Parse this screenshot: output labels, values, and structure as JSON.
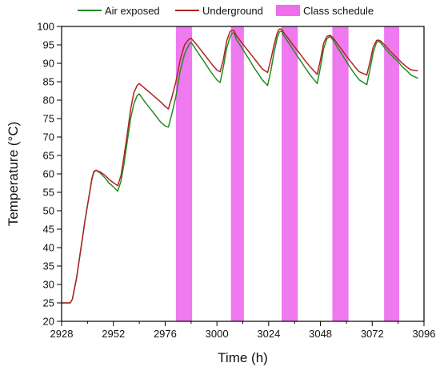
{
  "chart_data": {
    "type": "line",
    "xlabel": "Time (h)",
    "ylabel": "Temperature (°C)",
    "xlim": [
      2928,
      3096
    ],
    "ylim": [
      20,
      100
    ],
    "x_ticks": [
      2928,
      2952,
      2976,
      3000,
      3024,
      3048,
      3072,
      3096
    ],
    "y_ticks": [
      20,
      25,
      30,
      35,
      40,
      45,
      50,
      55,
      60,
      65,
      70,
      75,
      80,
      85,
      90,
      95,
      100
    ],
    "grid": false,
    "legend_position": "top",
    "legend": [
      {
        "label": "Air exposed",
        "kind": "line",
        "color": "#228B22"
      },
      {
        "label": "Underground",
        "kind": "line",
        "color": "#B22222"
      },
      {
        "label": "Class schedule",
        "kind": "band",
        "color": "#EE6EEE"
      }
    ],
    "class_schedule": [
      {
        "start": 2981,
        "end": 2988.5
      },
      {
        "start": 3006.5,
        "end": 3012.5
      },
      {
        "start": 3030,
        "end": 3037.5
      },
      {
        "start": 3053.5,
        "end": 3061
      },
      {
        "start": 3077.5,
        "end": 3084.5
      }
    ],
    "series": [
      {
        "name": "Air exposed",
        "color": "#228B22",
        "points": [
          [
            2928,
            25
          ],
          [
            2932,
            25
          ],
          [
            2933,
            26
          ],
          [
            2935,
            32
          ],
          [
            2937,
            40
          ],
          [
            2939,
            48
          ],
          [
            2941,
            55
          ],
          [
            2942,
            58.5
          ],
          [
            2943,
            60.5
          ],
          [
            2944,
            61
          ],
          [
            2946,
            60.2
          ],
          [
            2948,
            59
          ],
          [
            2950,
            57.5
          ],
          [
            2952,
            56.5
          ],
          [
            2954,
            55.3
          ],
          [
            2955.5,
            58
          ],
          [
            2957,
            63
          ],
          [
            2958.5,
            69
          ],
          [
            2960,
            75
          ],
          [
            2961.5,
            79
          ],
          [
            2963,
            81.2
          ],
          [
            2964,
            81.7
          ],
          [
            2966,
            80
          ],
          [
            2968,
            78.5
          ],
          [
            2970,
            77
          ],
          [
            2972,
            75.5
          ],
          [
            2974,
            74
          ],
          [
            2976,
            73
          ],
          [
            2977.5,
            72.7
          ],
          [
            2979,
            76
          ],
          [
            2981,
            81
          ],
          [
            2983,
            88
          ],
          [
            2985,
            92.5
          ],
          [
            2987,
            95
          ],
          [
            2988,
            95.7
          ],
          [
            2990,
            94
          ],
          [
            2992,
            92.2
          ],
          [
            2994,
            90.5
          ],
          [
            2996,
            88.7
          ],
          [
            2998,
            87
          ],
          [
            3000,
            85.5
          ],
          [
            3001.5,
            84.8
          ],
          [
            3003,
            89
          ],
          [
            3004.5,
            94
          ],
          [
            3006,
            97
          ],
          [
            3007,
            98.2
          ],
          [
            3008,
            98.2
          ],
          [
            3009,
            96.5
          ],
          [
            3011,
            94.7
          ],
          [
            3013,
            92.8
          ],
          [
            3015,
            91
          ],
          [
            3017,
            89
          ],
          [
            3019,
            87.3
          ],
          [
            3021,
            85.5
          ],
          [
            3023.5,
            84
          ],
          [
            3025,
            88
          ],
          [
            3026.5,
            93
          ],
          [
            3028,
            97
          ],
          [
            3029,
            98.5
          ],
          [
            3030,
            98.8
          ],
          [
            3031,
            97.5
          ],
          [
            3033,
            95.8
          ],
          [
            3035,
            94
          ],
          [
            3037,
            92.2
          ],
          [
            3039,
            90.5
          ],
          [
            3041,
            88.7
          ],
          [
            3043,
            87
          ],
          [
            3046.5,
            84.5
          ],
          [
            3048,
            89
          ],
          [
            3049.5,
            94
          ],
          [
            3051,
            96.7
          ],
          [
            3052.5,
            97.3
          ],
          [
            3054,
            96.2
          ],
          [
            3056,
            94.2
          ],
          [
            3058,
            92.4
          ],
          [
            3060,
            90.5
          ],
          [
            3062,
            88.7
          ],
          [
            3064,
            87
          ],
          [
            3066,
            85.5
          ],
          [
            3069.5,
            84.2
          ],
          [
            3071,
            88.5
          ],
          [
            3072.5,
            93
          ],
          [
            3074,
            95.7
          ],
          [
            3075,
            96
          ],
          [
            3076,
            95.5
          ],
          [
            3078,
            94
          ],
          [
            3080,
            92.7
          ],
          [
            3082,
            91.5
          ],
          [
            3084,
            90.5
          ],
          [
            3086,
            89
          ],
          [
            3088,
            88
          ],
          [
            3090,
            86.8
          ],
          [
            3093,
            86
          ]
        ]
      },
      {
        "name": "Underground",
        "color": "#B22222",
        "points": [
          [
            2928,
            25
          ],
          [
            2932,
            25
          ],
          [
            2933,
            26
          ],
          [
            2935,
            32
          ],
          [
            2937,
            40
          ],
          [
            2939,
            48
          ],
          [
            2941,
            55
          ],
          [
            2942,
            58.7
          ],
          [
            2943,
            60.7
          ],
          [
            2944,
            61
          ],
          [
            2946,
            60.5
          ],
          [
            2948,
            59.7
          ],
          [
            2950,
            58.5
          ],
          [
            2952,
            57.6
          ],
          [
            2954,
            56.8
          ],
          [
            2955.5,
            59.5
          ],
          [
            2957,
            65
          ],
          [
            2958.5,
            71
          ],
          [
            2960,
            77.5
          ],
          [
            2961.5,
            82
          ],
          [
            2963,
            84
          ],
          [
            2964,
            84.5
          ],
          [
            2966,
            83.5
          ],
          [
            2968,
            82.5
          ],
          [
            2970,
            81.5
          ],
          [
            2972,
            80.5
          ],
          [
            2974,
            79.5
          ],
          [
            2976,
            78.3
          ],
          [
            2977.5,
            77.6
          ],
          [
            2979,
            80.5
          ],
          [
            2981,
            85
          ],
          [
            2983,
            91
          ],
          [
            2985,
            95
          ],
          [
            2987,
            96.5
          ],
          [
            2988,
            96.8
          ],
          [
            2990,
            95.5
          ],
          [
            2992,
            94
          ],
          [
            2994,
            92.5
          ],
          [
            2996,
            91
          ],
          [
            2998,
            89.5
          ],
          [
            3000,
            88.2
          ],
          [
            3001.5,
            87.7
          ],
          [
            3003,
            91
          ],
          [
            3004.5,
            96
          ],
          [
            3006,
            98.5
          ],
          [
            3007,
            99
          ],
          [
            3008,
            98.8
          ],
          [
            3009,
            97.5
          ],
          [
            3011,
            96
          ],
          [
            3013,
            94.5
          ],
          [
            3015,
            93
          ],
          [
            3017,
            91.5
          ],
          [
            3019,
            90
          ],
          [
            3021,
            88.5
          ],
          [
            3023.5,
            87.5
          ],
          [
            3025,
            91
          ],
          [
            3026.5,
            95
          ],
          [
            3028,
            98.3
          ],
          [
            3029,
            99.3
          ],
          [
            3030,
            99.3
          ],
          [
            3031,
            98.3
          ],
          [
            3033,
            96.8
          ],
          [
            3035,
            95.2
          ],
          [
            3037,
            93.7
          ],
          [
            3039,
            92.2
          ],
          [
            3041,
            90.6
          ],
          [
            3043,
            89.2
          ],
          [
            3046.5,
            87
          ],
          [
            3048,
            91
          ],
          [
            3049.5,
            95.5
          ],
          [
            3051,
            97.3
          ],
          [
            3052.5,
            97.6
          ],
          [
            3054,
            96.8
          ],
          [
            3056,
            95.2
          ],
          [
            3058,
            93.6
          ],
          [
            3060,
            92
          ],
          [
            3062,
            90.5
          ],
          [
            3064,
            89
          ],
          [
            3066,
            87.7
          ],
          [
            3069.5,
            86.8
          ],
          [
            3071,
            90.5
          ],
          [
            3072.5,
            94.5
          ],
          [
            3074,
            96.2
          ],
          [
            3075,
            96.3
          ],
          [
            3076,
            96
          ],
          [
            3078,
            94.8
          ],
          [
            3080,
            93.5
          ],
          [
            3082,
            92.3
          ],
          [
            3084,
            91.2
          ],
          [
            3086,
            90
          ],
          [
            3088,
            89
          ],
          [
            3090,
            88.2
          ],
          [
            3093,
            88
          ]
        ]
      }
    ]
  }
}
